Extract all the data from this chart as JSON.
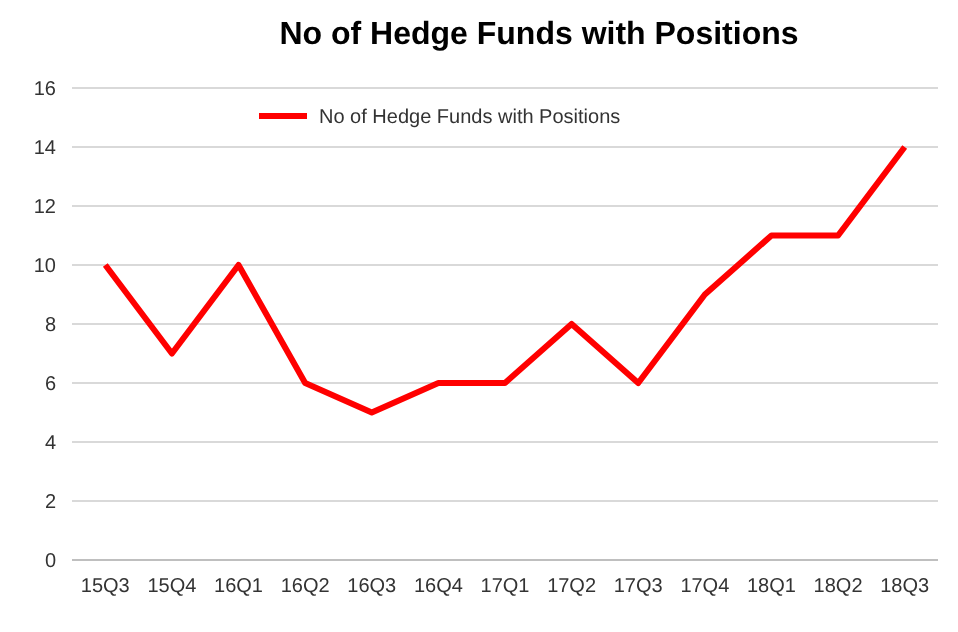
{
  "chart_data": {
    "type": "line",
    "title": "No of Hedge Funds with Positions",
    "categories": [
      "15Q3",
      "15Q4",
      "16Q1",
      "16Q2",
      "16Q3",
      "16Q4",
      "17Q1",
      "17Q2",
      "17Q3",
      "17Q4",
      "18Q1",
      "18Q2",
      "18Q3"
    ],
    "series": [
      {
        "name": "No of Hedge Funds with Positions",
        "color": "#ff0000",
        "values": [
          10,
          7,
          10,
          6,
          5,
          6,
          6,
          8,
          6,
          9,
          11,
          11,
          14
        ]
      }
    ],
    "ylim": [
      0,
      16
    ],
    "yticks": [
      0,
      2,
      4,
      6,
      8,
      10,
      12,
      14,
      16
    ],
    "grid": "y",
    "legend": "top",
    "marker": "none",
    "line_style": "solid"
  }
}
